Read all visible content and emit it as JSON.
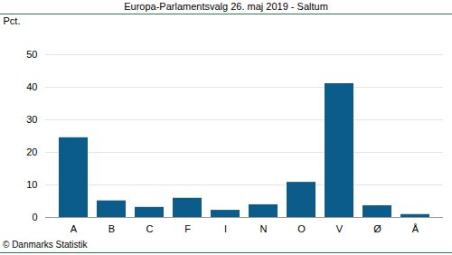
{
  "chart_data": {
    "type": "bar",
    "title": "Europa-Parlamentsvalg 26. maj 2019 - Saltum",
    "y_label": "Pct.",
    "caption": "© Danmarks Statistik",
    "categories": [
      "A",
      "B",
      "C",
      "F",
      "I",
      "N",
      "O",
      "V",
      "Ø",
      "Å"
    ],
    "values": [
      24.5,
      5.1,
      3.1,
      5.9,
      2.2,
      3.9,
      10.8,
      41.1,
      3.6,
      0.9
    ],
    "color": "#0b5b8b",
    "ylim": [
      0,
      50
    ],
    "yticks": [
      0,
      10,
      20,
      30,
      40,
      50
    ],
    "grid": true
  }
}
